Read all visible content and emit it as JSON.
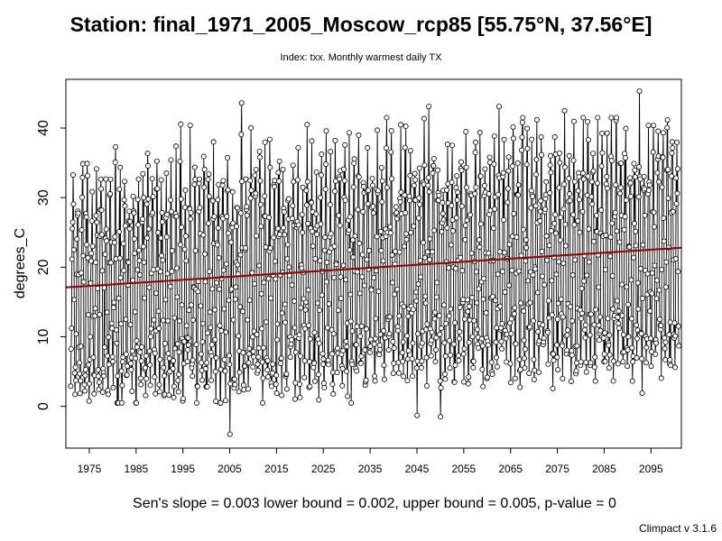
{
  "title": "Station: final_1971_2005_Moscow_rcp85 [55.75°N, 37.56°E]",
  "subtitle": "Index: txx. Monthly warmest daily TX",
  "footer": "Sen's slope = 0.003   lower bound = 0.002,   upper bound = 0.005,   p-value = 0",
  "version": "Climpact v 3.1.6",
  "colors": {
    "series": "#000000",
    "trend": "#8b0000",
    "background": "#ffffff"
  },
  "chart_data": {
    "type": "line",
    "title": "Station: final_1971_2005_Moscow_rcp85 [55.75°N, 37.56°E]",
    "subtitle": "Index: txx. Monthly warmest daily TX",
    "xlabel": "",
    "ylabel": "degrees_C",
    "x_start_year": 1971,
    "x_end_year": 2100,
    "xlim": [
      1970,
      2101.5
    ],
    "ylim": [
      -6,
      47
    ],
    "x_ticks": [
      1975,
      1985,
      1995,
      2005,
      2015,
      2025,
      2035,
      2045,
      2055,
      2065,
      2075,
      2085,
      2095
    ],
    "y_ticks": [
      0,
      10,
      20,
      30,
      40
    ],
    "grid": false,
    "legend": "none",
    "series": {
      "marker": "open-circle",
      "monthly_climatology": [
        2.5,
        3.5,
        9.0,
        17.5,
        25.0,
        28.5,
        30.5,
        28.5,
        22.0,
        14.0,
        6.5,
        3.0
      ],
      "monthly_anomaly_amplitude": [
        2.2,
        2.8,
        4.2,
        4.5,
        4.0,
        3.8,
        4.2,
        4.0,
        3.5,
        3.0,
        2.5,
        2.2
      ],
      "trend_per_year": 0.045,
      "approx_extremes": [
        {
          "year": 2007.5,
          "value": 43.6
        },
        {
          "year": 2047.5,
          "value": 43.1
        },
        {
          "year": 2062.5,
          "value": 43.1
        },
        {
          "year": 2076.5,
          "value": 42.5
        },
        {
          "year": 2092.5,
          "value": 45.3
        },
        {
          "year": 2005.0,
          "value": -4.0
        },
        {
          "year": 2045.0,
          "value": -1.3
        },
        {
          "year": 2050.0,
          "value": -1.5
        }
      ]
    },
    "trend_line": {
      "x": [
        1970,
        2101.5
      ],
      "y": [
        17.1,
        22.8
      ]
    },
    "sens_slope": 0.003,
    "lower_bound": 0.002,
    "upper_bound": 0.005,
    "p_value": 0
  }
}
